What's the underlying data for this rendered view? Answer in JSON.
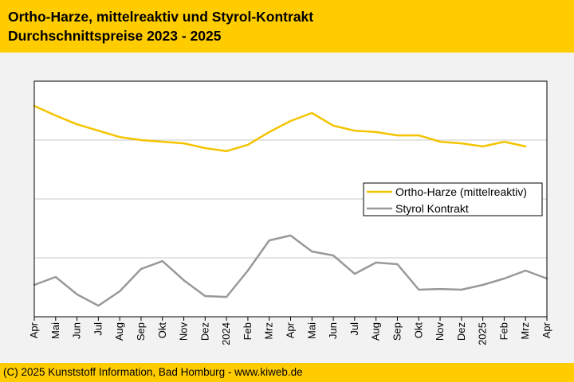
{
  "header": {
    "title_line1": "Ortho-Harze, mittelreaktiv und Styrol-Kontrakt",
    "title_line2": "Durchschnittspreise 2023 - 2025"
  },
  "footer": {
    "copyright": "(C) 2025 Kunststoff Information, Bad Homburg - www.kiweb.de"
  },
  "colors": {
    "header_bg": "#ffcc00",
    "page_bg": "#f2f2f2",
    "ortho": "#f5c400",
    "styrol": "#999999",
    "grid": "#c8c8c8"
  },
  "chart_data": {
    "type": "line",
    "title": "Ortho-Harze, mittelreaktiv und Styrol-Kontrakt — Durchschnittspreise 2023 - 2025",
    "xlabel": "",
    "ylabel": "",
    "ylim": [
      0,
      100
    ],
    "ygrid": [
      25,
      50,
      75
    ],
    "grid": true,
    "legend_position": "center-right",
    "categories": [
      "Apr",
      "Mai",
      "Jun",
      "Jul",
      "Aug",
      "Sep",
      "Okt",
      "Nov",
      "Dez",
      "2024",
      "Feb",
      "Mrz",
      "Apr",
      "Mai",
      "Jun",
      "Jul",
      "Aug",
      "Sep",
      "Okt",
      "Nov",
      "Dez",
      "2025",
      "Feb",
      "Mrz",
      "Apr"
    ],
    "series": [
      {
        "name": "Ortho-Harze (mittelreaktiv)",
        "color": "#f5c400",
        "values": [
          89.5,
          85.4,
          81.7,
          79.0,
          76.3,
          75.0,
          74.3,
          73.6,
          71.6,
          70.3,
          73.0,
          78.4,
          83.1,
          86.5,
          81.1,
          79.0,
          78.4,
          77.0,
          77.0,
          74.3,
          73.6,
          72.3,
          74.3,
          72.3,
          null
        ]
      },
      {
        "name": "Styrol Kontrakt",
        "color": "#999999",
        "values": [
          13.5,
          16.9,
          9.5,
          4.7,
          10.8,
          20.3,
          23.6,
          15.5,
          8.8,
          8.4,
          19.6,
          32.4,
          34.5,
          27.7,
          26.0,
          18.2,
          23.0,
          22.3,
          11.5,
          11.8,
          11.5,
          13.5,
          16.2,
          19.6,
          16.2
        ]
      }
    ]
  }
}
